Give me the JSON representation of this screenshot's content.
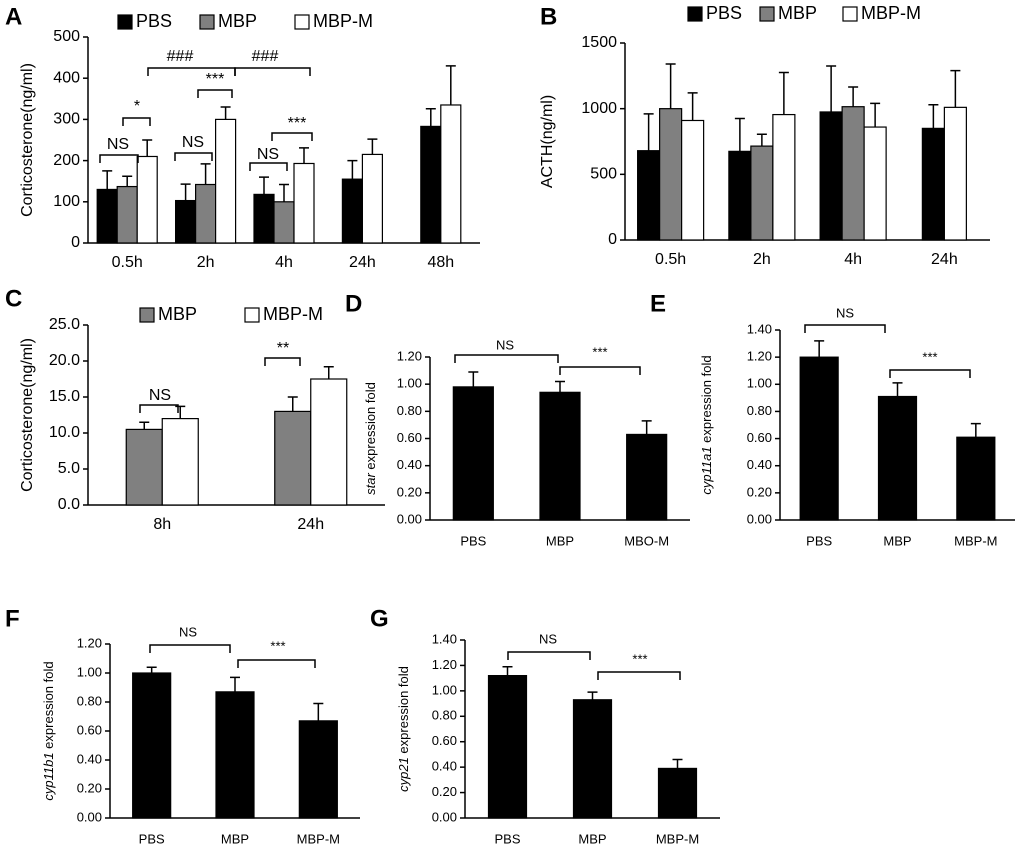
{
  "chart_data": [
    {
      "type": "bar",
      "panel": "A",
      "ylabel": "Corticosterone(ng/ml)",
      "categories": [
        "0.5h",
        "2h",
        "4h",
        "24h",
        "48h"
      ],
      "series": [
        {
          "name": "PBS",
          "color": "#000000",
          "values": [
            130,
            103,
            118,
            155,
            283
          ],
          "errors": [
            45,
            40,
            42,
            45,
            43
          ]
        },
        {
          "name": "MBP",
          "color": "#808080",
          "values": [
            137,
            142,
            100,
            null,
            null
          ],
          "errors": [
            25,
            50,
            42,
            null,
            null
          ]
        },
        {
          "name": "MBP-M",
          "color": "#ffffff",
          "values": [
            210,
            300,
            193,
            215,
            335
          ],
          "errors": [
            40,
            30,
            38,
            37,
            95
          ]
        }
      ],
      "ylim": [
        0,
        500
      ],
      "yticks": [
        0,
        100,
        200,
        300,
        400,
        500
      ],
      "legend": "top",
      "annotations": [
        "NS",
        "*",
        "###",
        "***",
        "NS",
        "###",
        "NS",
        "***"
      ]
    },
    {
      "type": "bar",
      "panel": "B",
      "ylabel": "ACTH(ng/ml)",
      "categories": [
        "0.5h",
        "2h",
        "4h",
        "24h"
      ],
      "series": [
        {
          "name": "PBS",
          "color": "#000000",
          "values": [
            680,
            675,
            975,
            850
          ],
          "errors": [
            280,
            250,
            350,
            180
          ]
        },
        {
          "name": "MBP",
          "color": "#808080",
          "values": [
            1000,
            715,
            1015,
            null
          ],
          "errors": [
            340,
            90,
            150,
            null
          ]
        },
        {
          "name": "MBP-M",
          "color": "#ffffff",
          "values": [
            910,
            955,
            860,
            1010
          ],
          "errors": [
            210,
            320,
            180,
            280
          ]
        }
      ],
      "ylim": [
        0,
        1500
      ],
      "yticks": [
        0,
        500,
        1000,
        1500
      ],
      "legend": "top"
    },
    {
      "type": "bar",
      "panel": "C",
      "ylabel": "Corticosterone(ng/ml)",
      "categories": [
        "8h",
        "24h"
      ],
      "series": [
        {
          "name": "MBP",
          "color": "#808080",
          "values": [
            10.5,
            13.0
          ],
          "errors": [
            1.0,
            2.0
          ]
        },
        {
          "name": "MBP-M",
          "color": "#ffffff",
          "values": [
            12.0,
            17.5
          ],
          "errors": [
            1.7,
            1.7
          ]
        }
      ],
      "ylim": [
        0,
        25
      ],
      "yticks": [
        {
          "value": 0,
          "label": "0.0"
        },
        {
          "value": 5,
          "label": "5.0"
        },
        {
          "value": 10,
          "label": "10.0"
        },
        {
          "value": 15,
          "label": "15.0"
        },
        {
          "value": 20,
          "label": "20.0"
        },
        {
          "value": 25,
          "label": "25.0"
        }
      ],
      "legend": "top",
      "annotations": [
        "NS",
        "**"
      ]
    },
    {
      "type": "bar",
      "panel": "D",
      "ylabel_gene": "star",
      "ylabel": "expression fold",
      "categories": [
        "PBS",
        "MBP",
        "MBO-M"
      ],
      "values": [
        0.98,
        0.94,
        0.63
      ],
      "errors": [
        0.11,
        0.08,
        0.1
      ],
      "color": "#000000",
      "ylim": [
        0,
        1.2
      ],
      "yticks": [
        {
          "value": 0,
          "label": "0.00"
        },
        {
          "value": 0.2,
          "label": "0.20"
        },
        {
          "value": 0.4,
          "label": "0.40"
        },
        {
          "value": 0.6,
          "label": "0.60"
        },
        {
          "value": 0.8,
          "label": "0.80"
        },
        {
          "value": 1.0,
          "label": "1.00"
        },
        {
          "value": 1.2,
          "label": "1.20"
        }
      ],
      "annotations": [
        "NS",
        "***"
      ]
    },
    {
      "type": "bar",
      "panel": "E",
      "ylabel_gene": "cyp11a1",
      "ylabel": "expression fold",
      "categories": [
        "PBS",
        "MBP",
        "MBP-M"
      ],
      "values": [
        1.2,
        0.91,
        0.61
      ],
      "errors": [
        0.12,
        0.1,
        0.1
      ],
      "color": "#000000",
      "ylim": [
        0,
        1.4
      ],
      "yticks": [
        {
          "value": 0,
          "label": "0.00"
        },
        {
          "value": 0.2,
          "label": "0.20"
        },
        {
          "value": 0.4,
          "label": "0.40"
        },
        {
          "value": 0.6,
          "label": "0.60"
        },
        {
          "value": 0.8,
          "label": "0.80"
        },
        {
          "value": 1.0,
          "label": "1.00"
        },
        {
          "value": 1.2,
          "label": "1.20"
        },
        {
          "value": 1.4,
          "label": "1.40"
        }
      ],
      "annotations": [
        "NS",
        "***"
      ]
    },
    {
      "type": "bar",
      "panel": "F",
      "ylabel_gene": "cyp11b1",
      "ylabel": "expression fold",
      "categories": [
        "PBS",
        "MBP",
        "MBP-M"
      ],
      "values": [
        1.0,
        0.87,
        0.67
      ],
      "errors": [
        0.04,
        0.1,
        0.12
      ],
      "color": "#000000",
      "ylim": [
        0,
        1.2
      ],
      "yticks": [
        {
          "value": 0,
          "label": "0.00"
        },
        {
          "value": 0.2,
          "label": "0.20"
        },
        {
          "value": 0.4,
          "label": "0.40"
        },
        {
          "value": 0.6,
          "label": "0.60"
        },
        {
          "value": 0.8,
          "label": "0.80"
        },
        {
          "value": 1.0,
          "label": "1.00"
        },
        {
          "value": 1.2,
          "label": "1.20"
        }
      ],
      "annotations": [
        "NS",
        "***"
      ]
    },
    {
      "type": "bar",
      "panel": "G",
      "ylabel_gene": "cyp21",
      "ylabel": "expression fold",
      "categories": [
        "PBS",
        "MBP",
        "MBP-M"
      ],
      "values": [
        1.12,
        0.93,
        0.39
      ],
      "errors": [
        0.07,
        0.06,
        0.07
      ],
      "color": "#000000",
      "ylim": [
        0,
        1.4
      ],
      "yticks": [
        {
          "value": 0,
          "label": "0.00"
        },
        {
          "value": 0.2,
          "label": "0.20"
        },
        {
          "value": 0.4,
          "label": "0.40"
        },
        {
          "value": 0.6,
          "label": "0.60"
        },
        {
          "value": 0.8,
          "label": "0.80"
        },
        {
          "value": 1.0,
          "label": "1.00"
        },
        {
          "value": 1.2,
          "label": "1.20"
        },
        {
          "value": 1.4,
          "label": "1.40"
        }
      ],
      "annotations": [
        "NS",
        "***"
      ]
    }
  ]
}
